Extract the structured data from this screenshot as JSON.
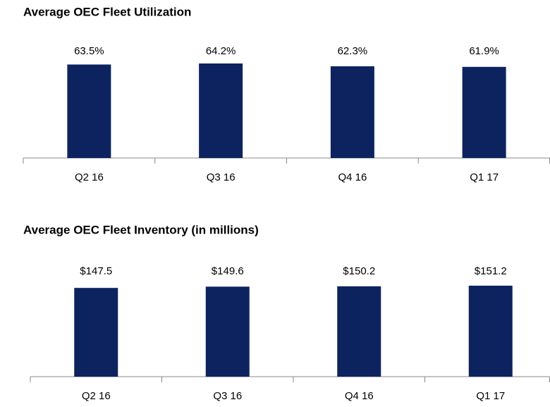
{
  "chart_data": [
    {
      "type": "bar",
      "title": "Average OEC Fleet Utilization",
      "categories": [
        "Q2 16",
        "Q3 16",
        "Q4 16",
        "Q1 17"
      ],
      "values": [
        63.5,
        64.2,
        62.3,
        61.9
      ],
      "value_labels": [
        "63.5%",
        "64.2%",
        "62.3%",
        "61.9%"
      ],
      "color": "#0c2360"
    },
    {
      "type": "bar",
      "title": "Average OEC Fleet Inventory (in millions)",
      "categories": [
        "Q2 16",
        "Q3 16",
        "Q4 16",
        "Q1 17"
      ],
      "values": [
        147.5,
        149.6,
        150.2,
        151.2
      ],
      "value_labels": [
        "$147.5",
        "$149.6",
        "$150.2",
        "$151.2"
      ],
      "color": "#0c2360"
    }
  ]
}
